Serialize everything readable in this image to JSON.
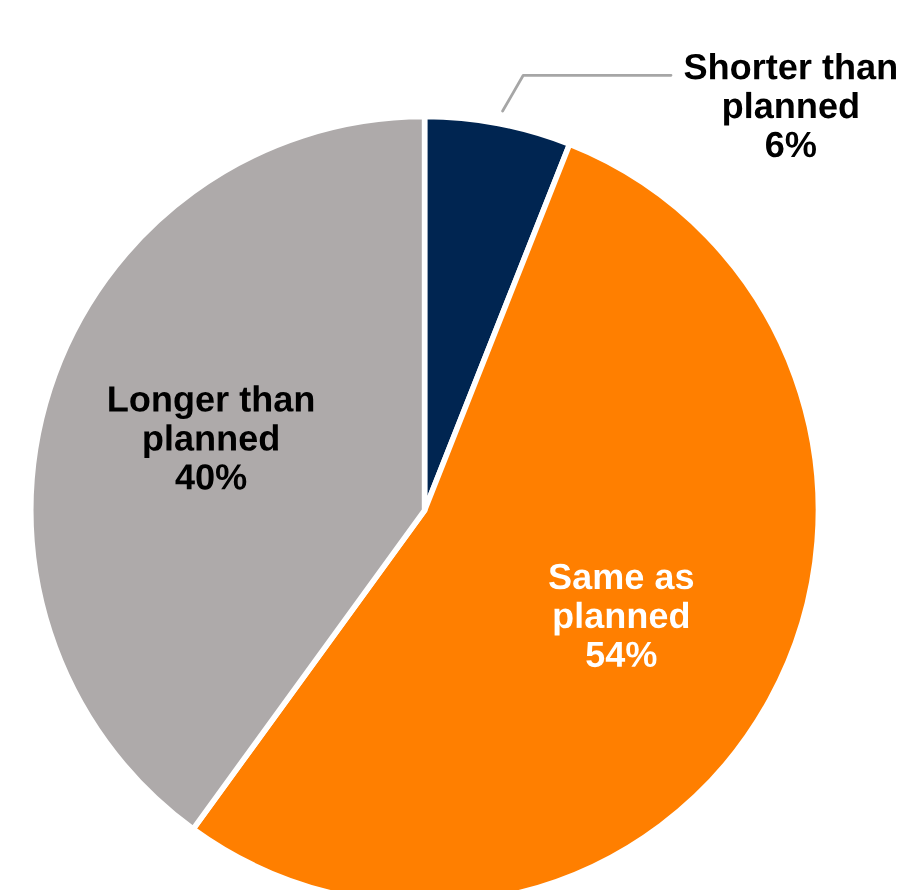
{
  "chart_data": {
    "type": "pie",
    "categories": [
      "Shorter than\nplanned",
      "Same as\nplanned",
      "Longer than\nplanned"
    ],
    "values": [
      6,
      54,
      40
    ],
    "colors": [
      "#002551",
      "#ff7f00",
      "#aeaaaa"
    ],
    "value_labels": [
      "6%",
      "54%",
      "40%"
    ],
    "legend": false
  }
}
